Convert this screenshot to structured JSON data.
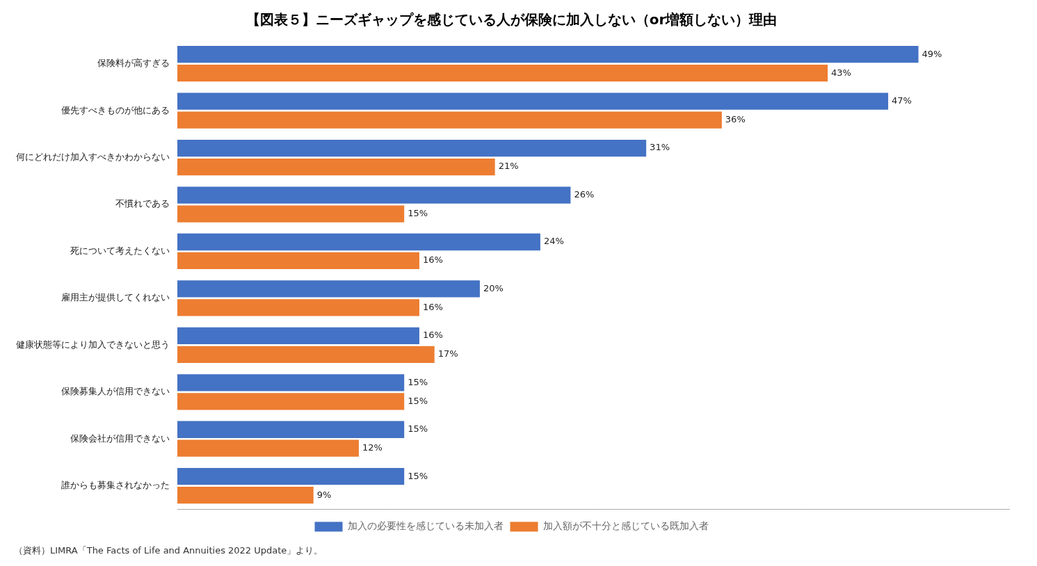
{
  "chart_data": {
    "type": "bar",
    "orientation": "horizontal",
    "title": "【図表５】ニーズギャップを感じている人が保険に加入しない（or増額しない）理由",
    "footnote": "（資料）LIMRA「The Facts of Life and Annuities 2022 Update」より。",
    "categories": [
      "保険料が高すぎる",
      "優先すべきものが他にある",
      "何にどれだけ加入すべきかわからない",
      "不慣れである",
      "死について考えたくない",
      "雇用主が提供してくれない",
      "健康状態等により加入できないと思う",
      "保険募集人が信用できない",
      "保険会社が信用できない",
      "誰からも募集されなかった"
    ],
    "series": [
      {
        "name": "加入の必要性を感じている未加入者",
        "color": "#4472C4",
        "values": [
          49,
          47,
          31,
          26,
          24,
          20,
          16,
          15,
          15,
          15
        ],
        "value_labels": [
          "49%",
          "47%",
          "31%",
          "26%",
          "24%",
          "20%",
          "16%",
          "15%",
          "15%",
          "15%"
        ]
      },
      {
        "name": "加入額が不十分と感じている既加入者",
        "color": "#ED7D31",
        "values": [
          43,
          36,
          21,
          15,
          16,
          16,
          17,
          15,
          12,
          9
        ],
        "value_labels": [
          "43%",
          "36%",
          "21%",
          "15%",
          "16%",
          "16%",
          "17%",
          "15%",
          "12%",
          "9%"
        ]
      }
    ],
    "xlim": [
      0,
      55
    ],
    "data_labels": true,
    "tick_labels": "y",
    "grid": false,
    "legend": "bottom"
  }
}
